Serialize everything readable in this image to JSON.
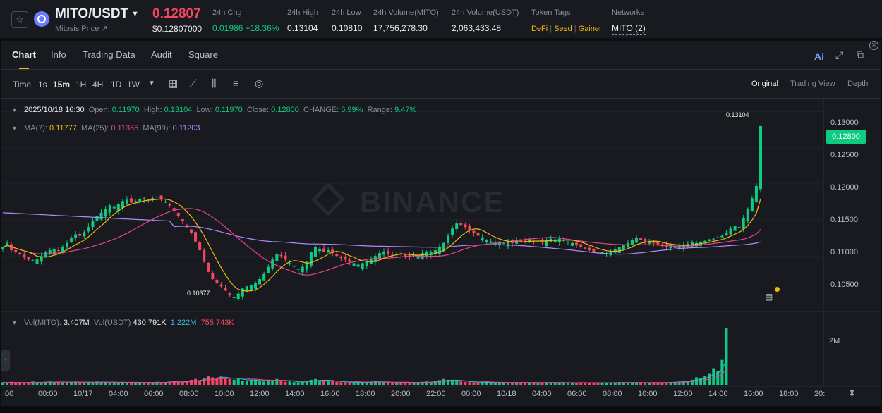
{
  "pair": {
    "symbol": "MITO/USDT",
    "subtitle": "Mitosis Price ↗",
    "last_price": "0.12807",
    "last_price_usd": "$0.12807000"
  },
  "stats": [
    {
      "label": "24h Chg",
      "value": "0.01986 +18.36%"
    },
    {
      "label": "24h High",
      "value": "0.13104"
    },
    {
      "label": "24h Low",
      "value": "0.10810"
    },
    {
      "label": "24h Volume(MITO)",
      "value": "17,756,278.30"
    },
    {
      "label": "24h Volume(USDT)",
      "value": "2,063,433.48"
    }
  ],
  "token_tags": {
    "label": "Token Tags",
    "items": [
      "DeFi",
      "Seed",
      "Gainer"
    ]
  },
  "networks": {
    "label": "Networks",
    "value": "MITO (2)"
  },
  "tabs": [
    "Chart",
    "Info",
    "Trading Data",
    "Audit",
    "Square"
  ],
  "header_icons": {
    "ai": "Ai"
  },
  "toolbar": {
    "intervals": [
      "Time",
      "1s",
      "15m",
      "1H",
      "4H",
      "1D",
      "1W"
    ],
    "active_interval": "15m",
    "views": [
      "Original",
      "Trading View",
      "Depth"
    ],
    "active_view": "Original"
  },
  "ohlc": {
    "date": "2025/10/18 16:30",
    "open_label": "Open:",
    "open": "0.11970",
    "high_label": "High:",
    "high": "0.13104",
    "low_label": "Low:",
    "low": "0.11970",
    "close_label": "Close:",
    "close": "0.12800",
    "change_label": "CHANGE:",
    "change": "6.99%",
    "range_label": "Range:",
    "range": "9.47%"
  },
  "ma": {
    "ma7_label": "MA(7):",
    "ma7": "0.11777",
    "ma25_label": "MA(25):",
    "ma25": "0.11365",
    "ma99_label": "MA(99):",
    "ma99": "0.11203"
  },
  "vol": {
    "mito_label": "Vol(MITO):",
    "mito": "3.407M",
    "usdt_label": "Vol(USDT)",
    "usdt": "430.791K",
    "ma1": "1.222M",
    "ma2": "755.743K"
  },
  "price_axis": [
    "0.13000",
    "0.12500",
    "0.12000",
    "0.11500",
    "0.11000",
    "0.10500"
  ],
  "price_badge": "0.12800",
  "vol_axis": "2M",
  "annotations": {
    "high": "0.13104",
    "low": "0.10377"
  },
  "time_axis": [
    ":00",
    "00:00",
    "10/17",
    "04:00",
    "06:00",
    "08:00",
    "10:00",
    "12:00",
    "14:00",
    "16:00",
    "18:00",
    "20:00",
    "22:00",
    "00:00",
    "10/18",
    "04:00",
    "06:00",
    "08:00",
    "10:00",
    "12:00",
    "14:00",
    "16:00",
    "18:00",
    "20:"
  ],
  "watermark": "BINANCE",
  "colors": {
    "up": "#0ecb81",
    "down": "#f6465d",
    "ma7": "#f0b90b",
    "ma25": "#e84393",
    "ma99": "#b08aff",
    "accent": "#f0b90b"
  },
  "chart_data": {
    "type": "candlestick",
    "interval": "15m",
    "ylim": [
      0.1025,
      0.1318
    ],
    "candles_approx": "0.1112,0.1118,0.1108,0.1105,0.1102,0.1098,0.1095,0.1094,0.1096,0.1100,0.1105,0.1108,0.1110,0.1107,0.1112,0.1118,0.1125,0.1130,0.1128,0.1133,0.1140,0.1148,0.1155,0.1160,0.1165,0.1170,0.1168,0.1172,0.1176,0.1178,0.1174,0.1176,0.1179,0.1180,0.1178,0.1180,0.1182,0.1178,0.1175,0.1170,0.1162,0.1155,0.1148,0.1140,0.1132,0.1120,0.1108,0.1092,0.1078,0.1068,0.1062,0.1058,0.1052,0.1046,0.1043,0.1048,0.1055,0.1058,0.1060,0.1062,0.1068,0.1075,0.1085,0.1095,0.1103,0.1100,0.1095,0.1090,0.1086,0.1082,0.1085,0.1092,0.1105,0.1112,0.1110,0.1106,0.1108,0.1104,0.1100,0.1098,0.1095,0.1092,0.1090,0.1088,0.1090,0.1093,0.1096,0.1100,0.1104,0.1106,0.1103,0.1101,0.1103,0.1102,0.1100,0.1099,0.1102,0.1101,0.1104,0.1106,0.1105,0.1108,0.1112,0.1118,0.1128,0.1138,0.1145,0.1143,0.1140,0.1136,0.1132,0.1128,0.1125,0.1122,0.1120,0.1119,0.1120,0.1118,0.1120,0.1118,0.1122,0.1120,0.1121,0.1123,0.1120,0.1121,0.1119,0.1122,0.1124,0.1123,0.1124,0.1122,0.1120,0.1118,0.1115,0.1113,0.1110,0.1108,0.1106,0.1104,0.1106,0.1104,0.1107,0.1110,0.1112,0.1115,0.1118,0.1122,0.1125,0.1122,0.1119,0.1120,0.1118,0.1116,0.1114,0.1113,0.1115,0.1114,0.1116,0.1115,0.1117,0.1119,0.1118,0.1120,0.1121,0.1123,0.1124,0.1126,0.1128,0.1132,0.1138,0.1142,0.1140,0.1152,0.1165,0.1180,0.1197,0.1280",
    "volume_approx": "0.15,0.12,0.18,0.10,0.14,0.12,0.16,0.20,0.15,0.12,0.18,0.20,0.16,0.18,0.14,0.15,0.18,0.20,0.15,0.12,0.16,0.14,0.20,0.18,0.15,0.12,0.16,0.14,0.18,0.12,0.15,0.13,0.17,0.14,0.12,0.15,0.18,0.16,0.14,0.20,0.25,0.18,0.15,0.22,0.30,0.35,0.25,0.40,0.55,0.45,0.38,0.50,0.42,0.35,0.30,0.38,0.25,0.22,0.28,0.30,0.25,0.20,0.30,0.28,0.35,0.22,0.18,0.20,0.16,0.15,0.18,0.20,0.30,0.35,0.28,0.25,0.20,0.22,0.18,0.16,0.15,0.14,0.12,0.16,0.14,0.18,0.20,0.22,0.16,0.14,0.15,0.12,0.14,0.13,0.15,0.12,0.14,0.16,0.18,0.20,0.15,0.22,0.28,0.35,0.30,0.26,0.22,0.20,0.18,0.16,0.15,0.14,0.16,0.14,0.12,0.15,0.13,0.16,0.14,0.12,0.15,0.14,0.12,0.13,0.15,0.12,0.14,0.16,0.12,0.13,0.14,0.12,0.11,0.13,0.12,0.14,0.12,0.13,0.11,0.12,0.14,0.13,0.12,0.14,0.16,0.15,0.13,0.12,0.14,0.12,0.13,0.12,0.14,0.13,0.15,0.14,0.16,0.18,0.20,0.22,0.25,0.30,0.45,0.38,0.55,0.70,1.00,0.85,1.50,3.40"
  }
}
